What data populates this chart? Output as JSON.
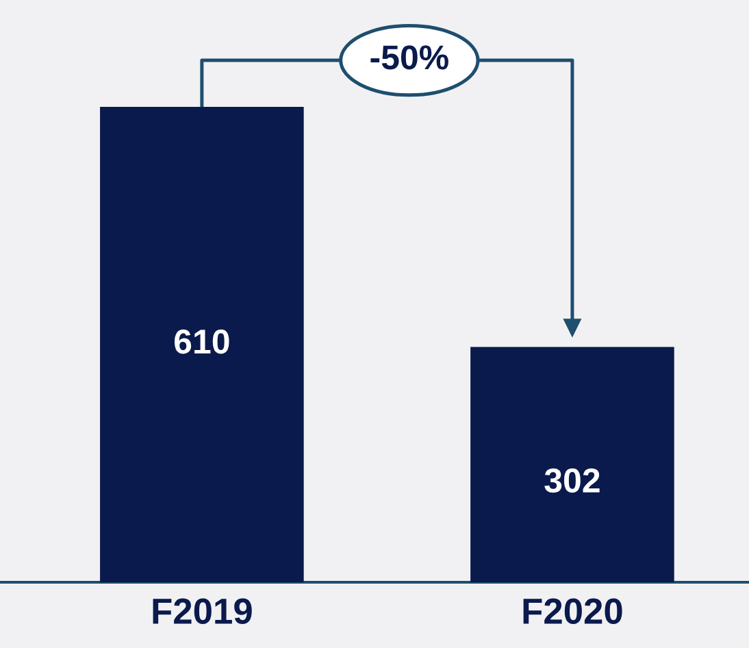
{
  "chart_data": {
    "type": "bar",
    "categories": [
      "F2019",
      "F2020"
    ],
    "values": [
      610,
      302
    ],
    "color": "#0b1a4c",
    "data_labels": true,
    "grid": false,
    "annotations": [
      "-50%"
    ]
  }
}
